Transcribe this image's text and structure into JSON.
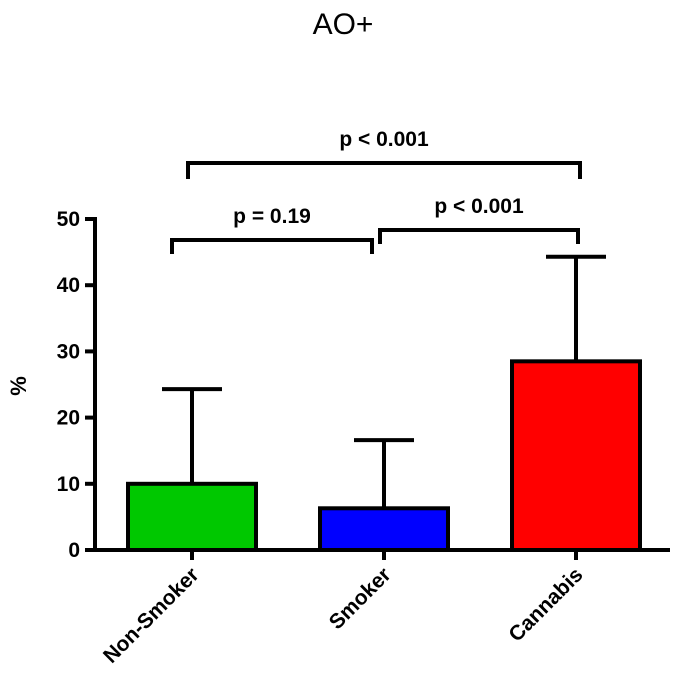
{
  "chart_data": {
    "type": "bar",
    "title": "AO+",
    "ylabel": "%",
    "xlabel": "",
    "ylim": [
      0,
      50
    ],
    "yticks": [
      "0",
      "10",
      "20",
      "30",
      "40",
      "50"
    ],
    "categories": [
      "Non-Smoker",
      "Smoker",
      "Cannabis"
    ],
    "values": [
      10,
      6.3,
      28.5
    ],
    "error_upper": [
      24.3,
      16.6,
      44.3
    ],
    "colors": [
      "#00c800",
      "#0000ff",
      "#ff0000"
    ],
    "annotations": [
      {
        "label": "p = 0.19",
        "from": 0,
        "to": 1
      },
      {
        "label": "p < 0.001",
        "from": 1,
        "to": 2
      },
      {
        "label": "p < 0.001",
        "from": 0,
        "to": 2
      }
    ]
  }
}
